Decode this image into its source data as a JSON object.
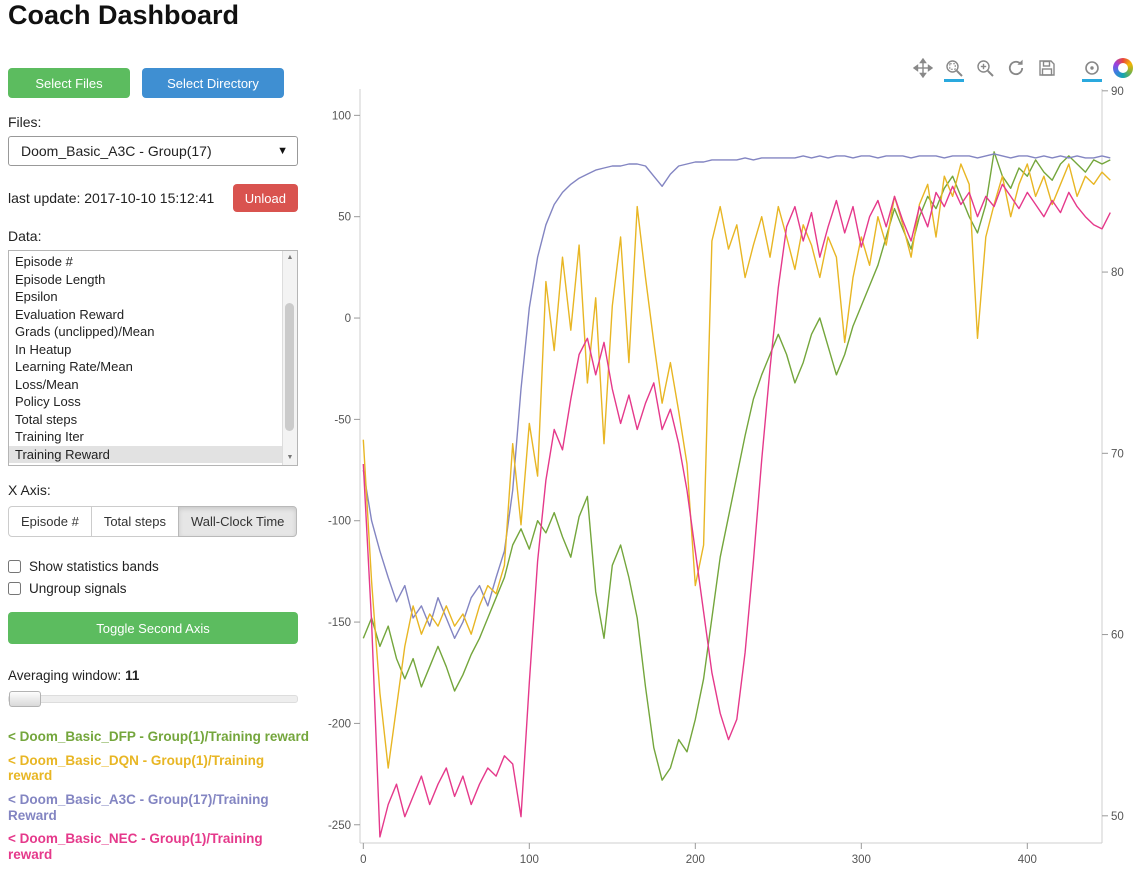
{
  "header": {
    "title": "Coach Dashboard"
  },
  "sidebar": {
    "select_files": "Select Files",
    "select_directory": "Select Directory",
    "files_label": "Files:",
    "file_value": "Doom_Basic_A3C - Group(17)",
    "last_update": "last update: 2017-10-10 15:12:41",
    "unload": "Unload",
    "data_label": "Data:",
    "data_items": [
      "Episode #",
      "Episode Length",
      "Epsilon",
      "Evaluation Reward",
      "Grads (unclipped)/Mean",
      "In Heatup",
      "Learning Rate/Mean",
      "Loss/Mean",
      "Policy Loss",
      "Total steps",
      "Training Iter",
      "Training Reward"
    ],
    "selected_data_item": "Training Reward",
    "x_axis_label": "X Axis:",
    "x_axis_options": [
      {
        "label": "Episode #",
        "active": false
      },
      {
        "label": "Total steps",
        "active": false
      },
      {
        "label": "Wall-Clock Time",
        "active": true
      }
    ],
    "checkboxes": [
      {
        "label": "Show statistics bands",
        "checked": false
      },
      {
        "label": "Ungroup signals",
        "checked": false
      }
    ],
    "toggle_second_axis": "Toggle Second Axis",
    "averaging_label": "Averaging window:",
    "averaging_value": "11",
    "legend": [
      {
        "label": "< Doom_Basic_DFP - Group(1)/Training reward",
        "color": "#74a63c"
      },
      {
        "label": "< Doom_Basic_DQN - Group(1)/Training reward",
        "color": "#e8b624"
      },
      {
        "label": "< Doom_Basic_A3C - Group(17)/Training Reward",
        "color": "#8385c2"
      },
      {
        "label": "< Doom_Basic_NEC - Group(1)/Training reward",
        "color": "#e5398b"
      }
    ]
  },
  "chart": {
    "toolbar": [
      {
        "name": "pan",
        "active": false
      },
      {
        "name": "box-zoom",
        "active": true
      },
      {
        "name": "wheel-zoom",
        "active": false
      },
      {
        "name": "reset",
        "active": false
      },
      {
        "name": "save",
        "active": false
      },
      {
        "name": "hover",
        "active": true
      },
      {
        "name": "bokeh-logo",
        "active": false
      }
    ],
    "accent_color": "#2aa9de"
  },
  "chart_data": {
    "type": "line",
    "title": "",
    "xlabel": "",
    "ylabel": "",
    "x_ticks": [
      0,
      100,
      200,
      300,
      400
    ],
    "y_left_ticks": [
      100,
      50,
      0,
      -50,
      -100,
      -150,
      -200,
      -250
    ],
    "y_right_ticks": [
      90,
      80,
      70,
      60,
      50
    ],
    "x_range": [
      -2,
      445
    ],
    "y_left_range": [
      -259,
      113
    ],
    "y_right_range": [
      48.5,
      90.1
    ],
    "grid": false,
    "legend_position": "sidebar-left",
    "series": [
      {
        "id": "dfp",
        "name": "Doom_Basic_DFP - Group(1)/Training reward",
        "color": "#74a63c",
        "x_start": 0,
        "x_step": 5,
        "y": [
          -158,
          -148,
          -162,
          -152,
          -168,
          -178,
          -168,
          -182,
          -172,
          -162,
          -172,
          -184,
          -176,
          -166,
          -158,
          -148,
          -138,
          -128,
          -112,
          -104,
          -114,
          -100,
          -106,
          -96,
          -108,
          -118,
          -98,
          -88,
          -135,
          -158,
          -122,
          -112,
          -128,
          -148,
          -182,
          -212,
          -228,
          -222,
          -208,
          -214,
          -198,
          -178,
          -148,
          -118,
          -98,
          -78,
          -58,
          -40,
          -28,
          -18,
          -8,
          -18,
          -32,
          -22,
          -8,
          0,
          -14,
          -28,
          -18,
          -4,
          6,
          16,
          26,
          40,
          54,
          44,
          34,
          50,
          60,
          54,
          64,
          70,
          60,
          50,
          42,
          56,
          82,
          70,
          64,
          74,
          70,
          78,
          72,
          68,
          76,
          80,
          76,
          72,
          78,
          76,
          78
        ]
      },
      {
        "id": "a3c",
        "name": "Doom_Basic_A3C - Group(17)/Training Reward",
        "color": "#8385c2",
        "x_start": 0,
        "x_step": 5,
        "y": [
          -75,
          -100,
          -115,
          -128,
          -140,
          -132,
          -148,
          -142,
          -152,
          -138,
          -148,
          -158,
          -150,
          -138,
          -132,
          -142,
          -128,
          -115,
          -85,
          -35,
          5,
          30,
          46,
          56,
          62,
          66,
          69,
          71,
          73,
          74,
          75,
          75,
          76,
          76,
          75,
          70,
          65,
          71,
          75,
          76,
          77,
          77,
          78,
          78,
          78,
          78,
          79,
          78,
          79,
          79,
          79,
          79,
          79,
          80,
          79,
          80,
          79,
          80,
          80,
          79,
          80,
          80,
          79,
          80,
          80,
          80,
          79,
          80,
          80,
          80,
          79,
          80,
          80,
          80,
          79,
          80,
          81,
          80,
          79,
          80,
          80,
          79,
          80,
          79,
          80,
          79,
          80,
          79,
          79,
          80,
          79
        ]
      },
      {
        "id": "dqn",
        "name": "Doom_Basic_DQN - Group(1)/Training reward",
        "color": "#e8b624",
        "x_start": 0,
        "x_step": 5,
        "y": [
          -60,
          -130,
          -185,
          -222,
          -192,
          -162,
          -142,
          -156,
          -146,
          -152,
          -142,
          -152,
          -146,
          -156,
          -142,
          -132,
          -136,
          -122,
          -62,
          -102,
          -52,
          -78,
          18,
          -16,
          30,
          -6,
          36,
          -32,
          10,
          -62,
          6,
          40,
          -22,
          55,
          20,
          -12,
          -42,
          -22,
          -46,
          -72,
          -132,
          -112,
          38,
          55,
          34,
          46,
          20,
          36,
          50,
          30,
          55,
          40,
          24,
          46,
          36,
          20,
          40,
          30,
          -12,
          20,
          40,
          26,
          50,
          36,
          60,
          46,
          30,
          56,
          66,
          40,
          70,
          60,
          76,
          66,
          -10,
          40,
          56,
          70,
          50,
          66,
          76,
          60,
          70,
          56,
          66,
          76,
          60,
          70,
          66,
          72,
          68
        ]
      },
      {
        "id": "nec",
        "name": "Doom_Basic_NEC - Group(1)/Training reward",
        "color": "#e5398b",
        "x_start": 0,
        "x_step": 5,
        "y": [
          -72,
          -150,
          -256,
          -240,
          -230,
          -246,
          -236,
          -226,
          -240,
          -230,
          -222,
          -236,
          -226,
          -240,
          -230,
          -222,
          -226,
          -216,
          -220,
          -246,
          -180,
          -120,
          -80,
          -55,
          -65,
          -40,
          -18,
          -10,
          -28,
          -12,
          -35,
          -52,
          -38,
          -55,
          -42,
          -32,
          -55,
          -45,
          -62,
          -85,
          -115,
          -145,
          -175,
          -195,
          -208,
          -198,
          -165,
          -120,
          -70,
          -25,
          15,
          45,
          55,
          38,
          52,
          30,
          45,
          58,
          42,
          55,
          35,
          50,
          58,
          45,
          60,
          48,
          38,
          55,
          45,
          62,
          55,
          65,
          56,
          62,
          50,
          60,
          55,
          66,
          60,
          54,
          62,
          56,
          50,
          58,
          52,
          62,
          55,
          50,
          46,
          44,
          52
        ]
      }
    ]
  }
}
